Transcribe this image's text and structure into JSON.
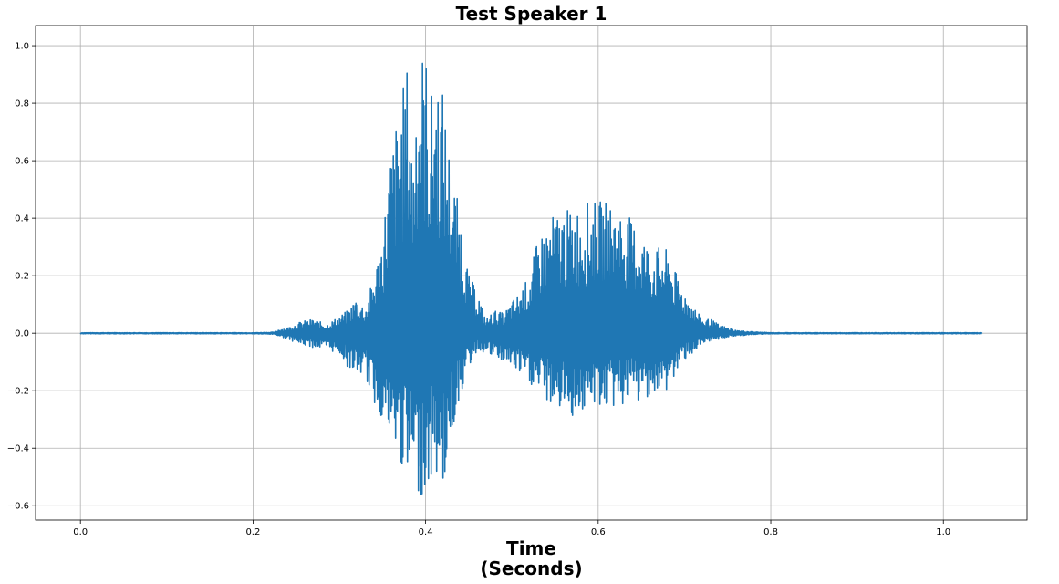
{
  "chart_data": {
    "type": "line",
    "title": "Test Speaker 1",
    "xlabel_lines": [
      "Time",
      "(Seconds)"
    ],
    "ylabel": "",
    "xlim": [
      -0.052,
      1.097
    ],
    "ylim": [
      -0.65,
      1.07
    ],
    "xticks": [
      0.0,
      0.2,
      0.4,
      0.6,
      0.8,
      1.0
    ],
    "xtick_labels": [
      "0.0",
      "0.2",
      "0.4",
      "0.6",
      "0.8",
      "1.0"
    ],
    "yticks": [
      -0.6,
      -0.4,
      -0.2,
      0.0,
      0.2,
      0.4,
      0.6,
      0.8,
      1.0
    ],
    "ytick_labels": [
      "−0.6",
      "−0.4",
      "−0.2",
      "0.0",
      "0.2",
      "0.4",
      "0.6",
      "0.8",
      "1.0"
    ],
    "grid": true,
    "line_color": "#1f77b4",
    "series": [
      {
        "x": [
          0.0,
          0.1,
          0.2,
          0.225,
          0.23,
          0.24,
          0.255,
          0.27,
          0.285,
          0.3,
          0.31,
          0.32,
          0.33,
          0.34,
          0.35,
          0.36,
          0.37,
          0.38,
          0.385,
          0.39,
          0.4,
          0.405,
          0.41,
          0.42,
          0.43,
          0.44,
          0.45,
          0.46,
          0.47,
          0.48,
          0.49,
          0.5,
          0.51,
          0.52,
          0.53,
          0.54,
          0.55,
          0.56,
          0.57,
          0.58,
          0.59,
          0.6,
          0.61,
          0.62,
          0.63,
          0.64,
          0.65,
          0.66,
          0.67,
          0.68,
          0.69,
          0.7,
          0.71,
          0.72,
          0.73,
          0.74,
          0.76,
          0.78,
          0.8,
          0.9,
          1.0,
          1.045
        ],
        "max": [
          0.002,
          0.002,
          0.002,
          0.004,
          0.015,
          0.02,
          0.04,
          0.05,
          0.03,
          0.06,
          0.08,
          0.13,
          0.09,
          0.2,
          0.35,
          0.65,
          0.8,
          0.96,
          0.6,
          0.98,
          1.0,
          0.78,
          0.94,
          0.85,
          0.57,
          0.42,
          0.2,
          0.15,
          0.05,
          0.08,
          0.07,
          0.11,
          0.15,
          0.2,
          0.33,
          0.38,
          0.42,
          0.43,
          0.43,
          0.45,
          0.46,
          0.46,
          0.46,
          0.44,
          0.43,
          0.39,
          0.36,
          0.3,
          0.3,
          0.29,
          0.21,
          0.15,
          0.1,
          0.05,
          0.05,
          0.03,
          0.01,
          0.005,
          0.002,
          0.002,
          0.002,
          0.002
        ],
        "min": [
          -0.002,
          -0.002,
          -0.002,
          -0.004,
          -0.01,
          -0.02,
          -0.04,
          -0.05,
          -0.06,
          -0.07,
          -0.12,
          -0.14,
          -0.15,
          -0.25,
          -0.3,
          -0.4,
          -0.45,
          -0.54,
          -0.52,
          -0.56,
          -0.57,
          -0.54,
          -0.48,
          -0.55,
          -0.36,
          -0.22,
          -0.12,
          -0.06,
          -0.07,
          -0.09,
          -0.1,
          -0.12,
          -0.15,
          -0.18,
          -0.2,
          -0.24,
          -0.26,
          -0.27,
          -0.29,
          -0.28,
          -0.27,
          -0.25,
          -0.27,
          -0.26,
          -0.25,
          -0.24,
          -0.25,
          -0.21,
          -0.24,
          -0.2,
          -0.15,
          -0.09,
          -0.07,
          -0.05,
          -0.03,
          -0.02,
          -0.01,
          -0.005,
          -0.002,
          -0.002,
          -0.002,
          -0.002
        ]
      }
    ]
  }
}
